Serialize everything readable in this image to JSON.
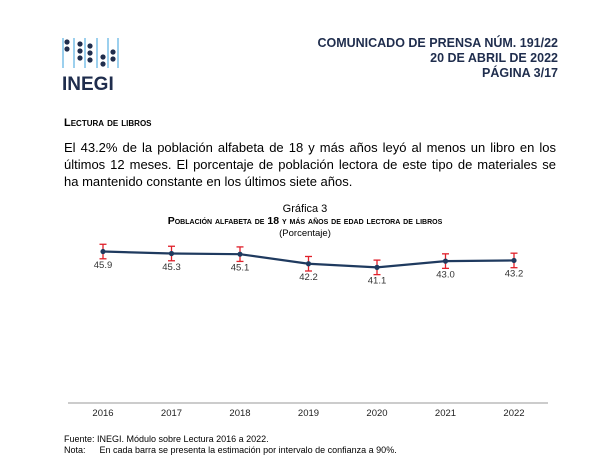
{
  "logo": {
    "text": "INEGI"
  },
  "header": {
    "line1": "COMUNICADO DE PRENSA NÚM. 191/22",
    "line2": "20 DE ABRIL DE 2022",
    "line3": "PÁGINA 3/17"
  },
  "section_title": "Lectura de libros",
  "paragraph": "El 43.2% de la población alfabeta de 18 y más años leyó al menos un libro en los últimos 12 meses. El porcentaje de población lectora de este tipo de materiales se ha mantenido constante en los últimos siete años.",
  "chart_data": {
    "type": "line",
    "label": "Gráfica 3",
    "title": "Población alfabeta de 18 y más años de edad lectora de libros",
    "subtitle": "(Porcentaje)",
    "categories": [
      "2016",
      "2017",
      "2018",
      "2019",
      "2020",
      "2021",
      "2022"
    ],
    "values": [
      45.9,
      45.3,
      45.1,
      42.2,
      41.1,
      43.0,
      43.2
    ],
    "value_labels": [
      "45.9",
      "45.3",
      "45.1",
      "42.2",
      "41.1",
      "43.0",
      "43.2"
    ],
    "error_half_width": 2.2,
    "ylim": [
      0,
      50
    ],
    "grid": false,
    "colors": {
      "line": "#1f3a5f",
      "error": "#e0202a"
    }
  },
  "footer": {
    "source": "Fuente: INEGI. Módulo sobre Lectura 2016 a 2022.",
    "note_label": "Nota:",
    "note": "En cada barra se presenta la estimación por intervalo de confianza a 90%."
  }
}
